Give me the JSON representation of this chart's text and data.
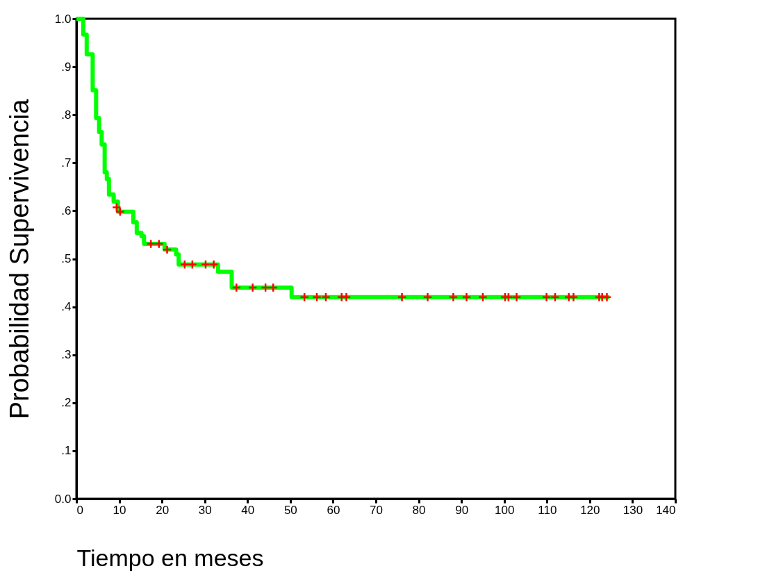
{
  "chart_data": {
    "type": "step",
    "xlabel": "Tiempo en meses",
    "ylabel": "Probabilidad  Supervivencia",
    "xlim": [
      0,
      140
    ],
    "xticks": [
      0,
      10,
      20,
      30,
      40,
      50,
      60,
      70,
      80,
      90,
      100,
      110,
      120,
      130,
      140
    ],
    "ylim": [
      0,
      1
    ],
    "yticks": [
      {
        "value": 0,
        "label": "0.0"
      },
      {
        "value": 0.1,
        "label": ".1"
      },
      {
        "value": 0.2,
        "label": ".2"
      },
      {
        "value": 0.3,
        "label": ".3"
      },
      {
        "value": 0.4,
        "label": ".4"
      },
      {
        "value": 0.5,
        "label": ".5"
      },
      {
        "value": 0.6,
        "label": ".6"
      },
      {
        "value": 0.7,
        "label": ".7"
      },
      {
        "value": 0.8,
        "label": ".8"
      },
      {
        "value": 0.9,
        "label": ".9"
      },
      {
        "value": 1,
        "label": "1.0"
      }
    ],
    "grid": false,
    "series": [
      {
        "color": "#00ff00",
        "x": [
          0,
          1.6,
          2.4,
          3.8,
          4.6,
          5.3,
          5.9,
          6.6,
          7.1,
          7.6,
          8.7,
          9.7,
          13.3,
          14.1,
          15.2,
          15.8,
          20.6,
          23.3,
          23.9,
          33.1,
          36.3,
          50.3,
          124.6
        ],
        "values": [
          1.0,
          0.967,
          0.926,
          0.851,
          0.793,
          0.764,
          0.738,
          0.68,
          0.666,
          0.634,
          0.619,
          0.598,
          0.576,
          0.554,
          0.547,
          0.531,
          0.519,
          0.509,
          0.488,
          0.473,
          0.44,
          0.42,
          0.42
        ]
      },
      {
        "type": "scatter",
        "color": "#ff0000",
        "marker": "cross",
        "x": [
          9.4,
          10.2,
          17.4,
          19.3,
          21.2,
          25.3,
          27.1,
          30.2,
          32.1,
          37.4,
          41.2,
          44.2,
          46.0,
          53.3,
          56.2,
          58.3,
          62.0,
          63.1,
          76.1,
          82.1,
          88.1,
          91.2,
          95.0,
          100.2,
          101.0,
          102.9,
          109.9,
          111.9,
          115.1,
          116.2,
          122.2,
          122.9,
          124.0
        ],
        "values": [
          0.607,
          0.598,
          0.531,
          0.531,
          0.519,
          0.488,
          0.488,
          0.488,
          0.488,
          0.44,
          0.44,
          0.44,
          0.44,
          0.42,
          0.42,
          0.42,
          0.42,
          0.42,
          0.42,
          0.42,
          0.42,
          0.42,
          0.42,
          0.42,
          0.42,
          0.42,
          0.42,
          0.42,
          0.42,
          0.42,
          0.42,
          0.42,
          0.42
        ]
      }
    ]
  }
}
